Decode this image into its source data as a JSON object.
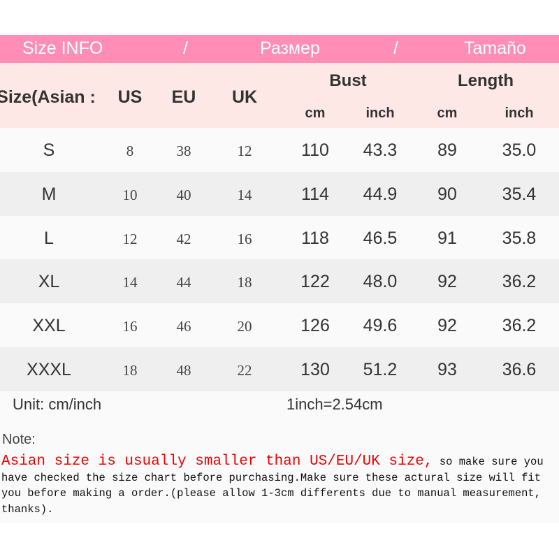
{
  "banner": [
    "Size INFO",
    "/",
    "Размер",
    "/",
    "Tamaño"
  ],
  "header": {
    "size": "Size(Asian :",
    "us": "US",
    "eu": "EU",
    "uk": "UK",
    "bust": "Bust",
    "length": "Length",
    "cm": "cm",
    "inch": "inch"
  },
  "rows": [
    [
      "S",
      "8",
      "38",
      "12",
      "110",
      "43.3",
      "89",
      "35.0"
    ],
    [
      "M",
      "10",
      "40",
      "14",
      "114",
      "44.9",
      "90",
      "35.4"
    ],
    [
      "L",
      "12",
      "42",
      "16",
      "118",
      "46.5",
      "91",
      "35.8"
    ],
    [
      "XL",
      "14",
      "44",
      "18",
      "122",
      "48.0",
      "92",
      "36.2"
    ],
    [
      "XXL",
      "16",
      "46",
      "20",
      "126",
      "49.6",
      "92",
      "36.2"
    ],
    [
      "XXXL",
      "18",
      "48",
      "22",
      "130",
      "51.2",
      "93",
      "36.6"
    ]
  ],
  "footer": {
    "unit": "Unit: cm/inch",
    "conversion": "1inch=2.54cm",
    "note": "Note:",
    "warning": "Asian size is usually smaller than US/EU/UK size,",
    "text": " so make sure you have checked the size chart before purchasing.Make sure these actural size will fit you before making a order.(please allow 1-3cm differents due to manual measurement, thanks)."
  },
  "colors": {
    "banner": "#ff8db6",
    "header": "#fde8e6",
    "warning": "#e00000"
  }
}
